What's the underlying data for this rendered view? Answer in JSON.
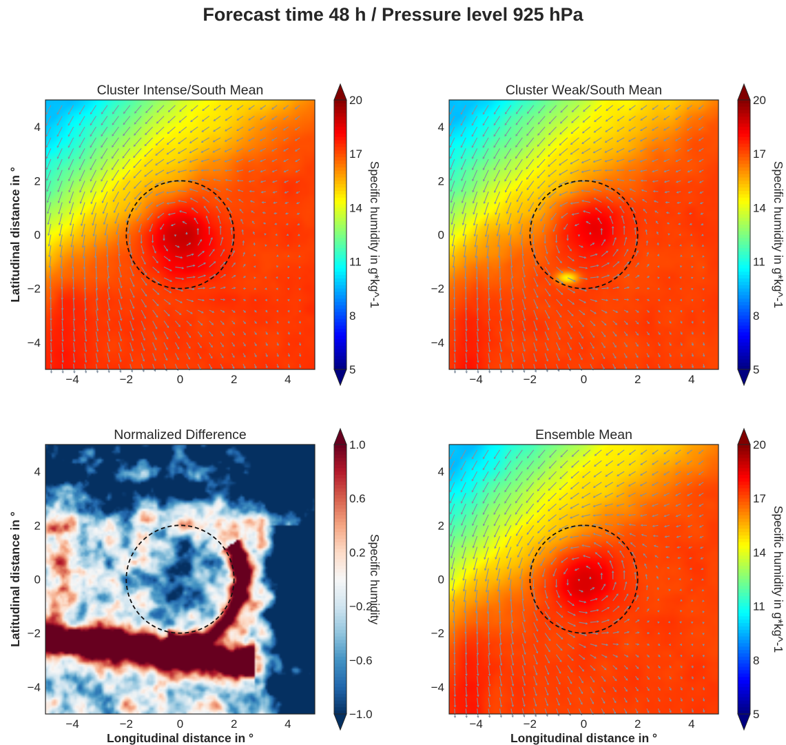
{
  "figure": {
    "title": "Forecast time 48 h / Pressure level 925 hPa"
  },
  "chart_data": [
    {
      "type": "heatmap",
      "title": "Cluster Intense/South Mean",
      "xlabel": "",
      "ylabel": "Latitudinal distance in °",
      "xlim": [
        -5,
        5
      ],
      "ylim": [
        -5,
        5
      ],
      "xticks": [
        -4,
        -2,
        0,
        2,
        4
      ],
      "yticks": [
        -4,
        -2,
        0,
        2,
        4
      ],
      "colormap": "jet",
      "colorbar": {
        "label": "Specific humidity in g*kg^-1",
        "min": 5,
        "max": 20,
        "ticks": [
          5,
          8,
          11,
          14,
          17,
          20
        ]
      },
      "overlay": {
        "quiver": "wind vectors (gray)",
        "circle_radius_deg": 2,
        "circle_center": [
          0,
          0
        ]
      },
      "field": {
        "core_value": 19.3,
        "core_center": [
          0,
          0
        ],
        "env_value": 17.3,
        "nw_min": 9.5,
        "band_below_core": 17.6
      }
    },
    {
      "type": "heatmap",
      "title": "Cluster Weak/South Mean",
      "xlabel": "",
      "ylabel": "",
      "xlim": [
        -5,
        5
      ],
      "ylim": [
        -5,
        5
      ],
      "xticks": [
        -4,
        -2,
        0,
        2,
        4
      ],
      "yticks": [
        -4,
        -2,
        0,
        2,
        4
      ],
      "colormap": "jet",
      "colorbar": {
        "label": "Specific humidity in g*kg^-1",
        "min": 5,
        "max": 20,
        "ticks": [
          5,
          8,
          11,
          14,
          17,
          20
        ]
      },
      "overlay": {
        "quiver": "wind vectors (gray)",
        "circle_radius_deg": 2,
        "circle_center": [
          0,
          0
        ]
      },
      "field": {
        "core_value": 18.6,
        "core_center": [
          0.2,
          0.3
        ],
        "env_value": 17.2,
        "nw_min": 9.0,
        "dry_spot": [
          -0.6,
          -1.6
        ]
      }
    },
    {
      "type": "heatmap",
      "title": "Normalized Difference",
      "xlabel": "Longitudinal distance in °",
      "ylabel": "Latitudinal distance in °",
      "xlim": [
        -5,
        5
      ],
      "ylim": [
        -5,
        5
      ],
      "xticks": [
        -4,
        -2,
        0,
        2,
        4
      ],
      "yticks": [
        -4,
        -2,
        0,
        2,
        4
      ],
      "colormap": "RdBu_r",
      "colorbar": {
        "label": "Specific humidity",
        "min": -1.0,
        "max": 1.0,
        "ticks": [
          -1.0,
          -0.6,
          -0.2,
          0.2,
          0.6,
          1.0
        ]
      },
      "overlay": {
        "circle_radius_deg": 2,
        "circle_center": [
          0,
          0
        ]
      },
      "field": {
        "positive_band": "south arc (y -2.5 to -3.5)",
        "negative_region": "north and east",
        "value_range": [
          -1.0,
          1.0
        ]
      }
    },
    {
      "type": "heatmap",
      "title": "Ensemble Mean",
      "xlabel": "Longitudinal distance in °",
      "ylabel": "",
      "xlim": [
        -5,
        5
      ],
      "ylim": [
        -5,
        5
      ],
      "xticks": [
        -4,
        -2,
        0,
        2,
        4
      ],
      "yticks": [
        -4,
        -2,
        0,
        2,
        4
      ],
      "colormap": "jet",
      "colorbar": {
        "label": "Specific humidity in g*kg^-1",
        "min": 5,
        "max": 20,
        "ticks": [
          5,
          8,
          11,
          14,
          17,
          20
        ]
      },
      "overlay": {
        "quiver": "wind vectors (gray)",
        "circle_radius_deg": 2,
        "circle_center": [
          0,
          0
        ]
      },
      "field": {
        "core_value": 19.0,
        "core_center": [
          0,
          0
        ],
        "env_value": 17.2,
        "nw_min": 9.2
      }
    }
  ]
}
